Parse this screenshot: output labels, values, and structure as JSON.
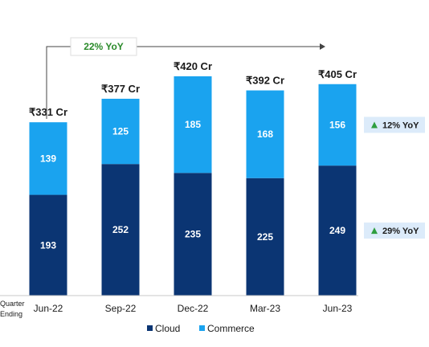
{
  "chart_data": {
    "type": "bar",
    "stacked": true,
    "categories": [
      "Jun-22",
      "Sep-22",
      "Dec-22",
      "Mar-23",
      "Jun-23"
    ],
    "series": [
      {
        "name": "Cloud",
        "values": [
          193,
          252,
          235,
          225,
          249
        ],
        "color": "#0b3573"
      },
      {
        "name": "Commerce",
        "values": [
          139,
          125,
          185,
          168,
          156
        ],
        "color": "#1aa3ef"
      }
    ],
    "totals": [
      "₹331 Cr",
      "₹377 Cr",
      "₹420 Cr",
      "₹392 Cr",
      "₹405 Cr"
    ],
    "xlabel": "Quarter Ending",
    "xlabel_lines": [
      "Quarter",
      "Ending"
    ],
    "ylim": [
      0,
      420
    ],
    "grid": false,
    "legend_position": "bottom",
    "annotations": {
      "cagr": "22% YoY",
      "cagr_color": "#2a8a2a",
      "badges": [
        {
          "series": "Commerce",
          "text": "12% YoY",
          "arrow": "up"
        },
        {
          "series": "Cloud",
          "text": "29% YoY",
          "arrow": "up"
        }
      ],
      "badge_bg": "#dcebfa",
      "arrow_color": "#2e9e3f"
    }
  }
}
